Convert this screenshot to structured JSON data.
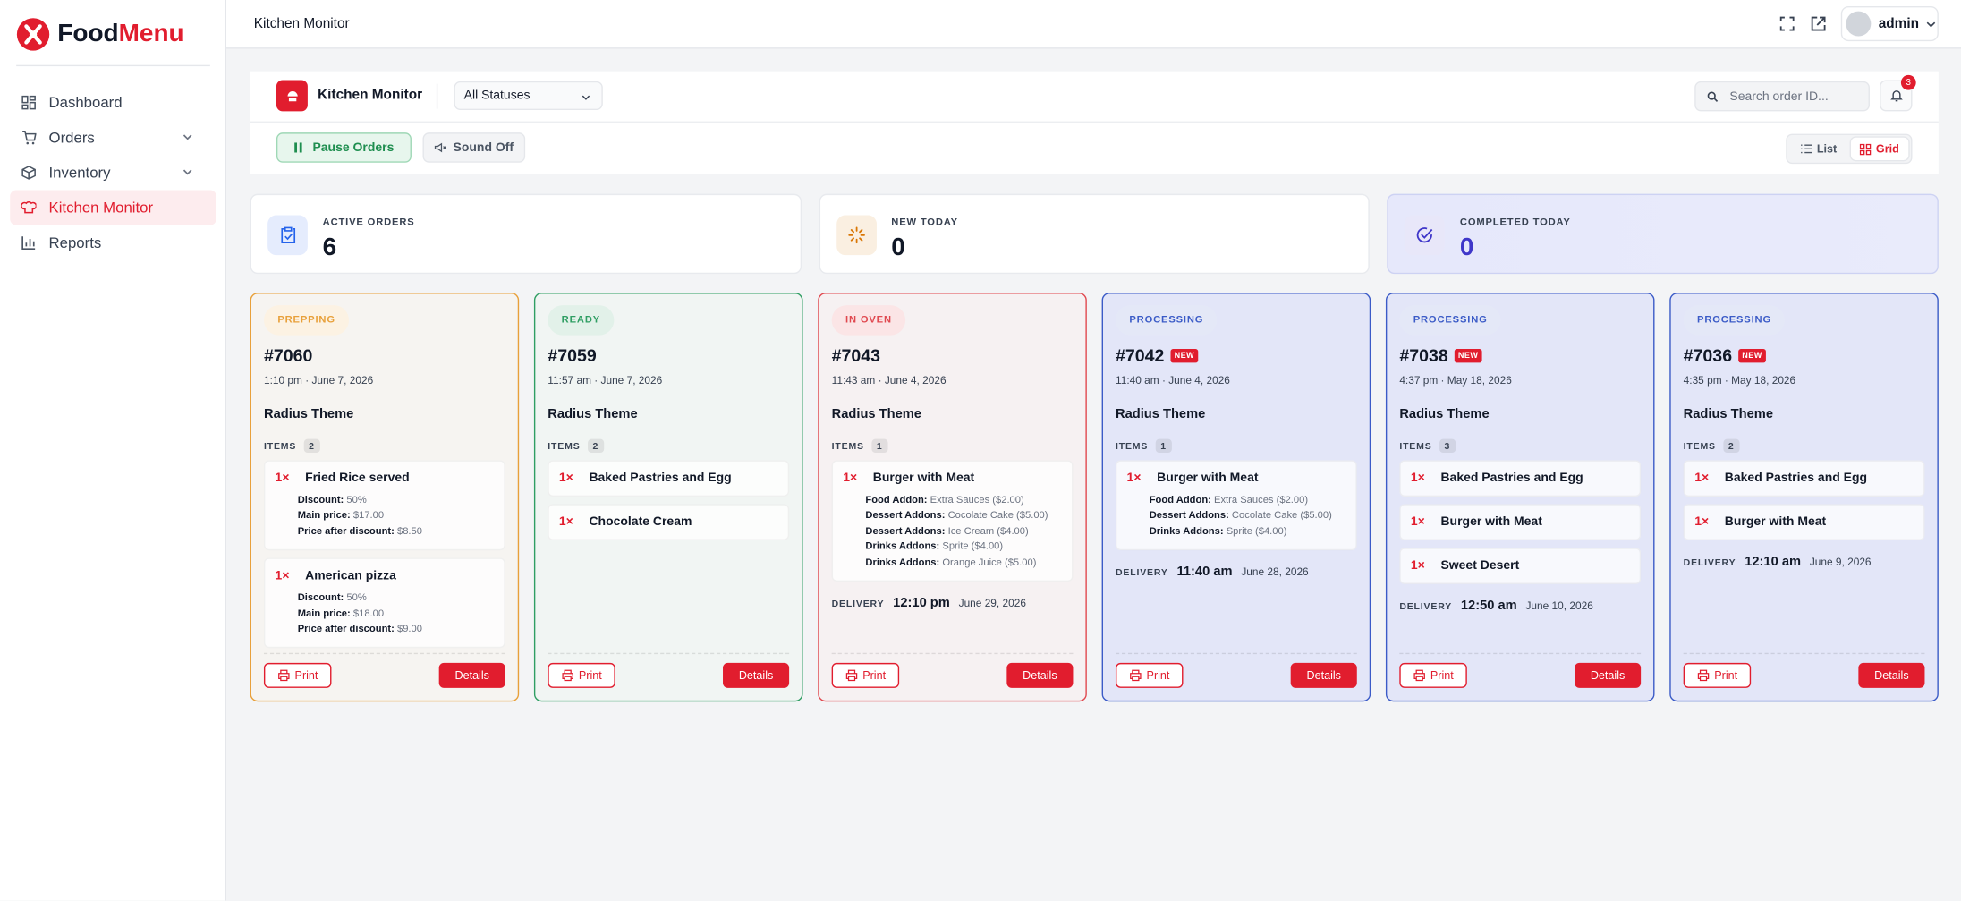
{
  "sidebar": {
    "brand_first": "Food",
    "brand_second": "Menu",
    "nav": [
      {
        "label": "Dashboard",
        "icon": "grid",
        "active": false,
        "expandable": false
      },
      {
        "label": "Orders",
        "icon": "cart",
        "active": false,
        "expandable": true
      },
      {
        "label": "Inventory",
        "icon": "box",
        "active": false,
        "expandable": true
      },
      {
        "label": "Kitchen Monitor",
        "icon": "chef",
        "active": true,
        "expandable": false
      },
      {
        "label": "Reports",
        "icon": "chart",
        "active": false,
        "expandable": false
      }
    ]
  },
  "header": {
    "title": "Kitchen Monitor",
    "user": "admin"
  },
  "toolbar": {
    "title": "Kitchen Monitor",
    "status_filter": "All Statuses",
    "search_placeholder": "Search order ID...",
    "notification_count": 3,
    "pause": "Pause Orders",
    "sound": "Sound Off",
    "views": [
      "List",
      "Grid"
    ]
  },
  "stats": [
    {
      "label": "ACTIVE ORDERS",
      "value": 6,
      "color": "#2563eb",
      "highlight": false
    },
    {
      "label": "NEW TODAY",
      "value": 0,
      "color": "#d97706",
      "highlight": false
    },
    {
      "label": "COMPLETED TODAY",
      "value": 0,
      "color": "#3f37c9",
      "highlight": true
    }
  ],
  "labels": {
    "items": "ITEMS",
    "delivery": "DELIVERY",
    "new": "NEW",
    "print": "Print",
    "details": "Details"
  },
  "orders": [
    {
      "status": "PREPPING",
      "color": "#e8a03a",
      "background": "#f6f4f1",
      "id": "#7060",
      "is_new": false,
      "time": "1:10 pm · June 7, 2026",
      "customer": "Radius Theme",
      "items_count": 2,
      "items": [
        {
          "qty": "1×",
          "name": "Fried Rice served",
          "details": [
            {
              "label": "Discount:",
              "value": "50%"
            },
            {
              "label": "Main price:",
              "value": "$17.00"
            },
            {
              "label": "Price after discount:",
              "value": "$8.50"
            }
          ]
        },
        {
          "qty": "1×",
          "name": "American pizza",
          "details": [
            {
              "label": "Discount:",
              "value": "50%"
            },
            {
              "label": "Main price:",
              "value": "$18.00"
            },
            {
              "label": "Price after discount:",
              "value": "$9.00"
            }
          ]
        }
      ]
    },
    {
      "status": "READY",
      "color": "#2f9e63",
      "background": "#f1f5f3",
      "id": "#7059",
      "is_new": false,
      "time": "11:57 am · June 7, 2026",
      "customer": "Radius Theme",
      "items_count": 2,
      "items": [
        {
          "qty": "1×",
          "name": "Baked Pastries and Egg",
          "details": []
        },
        {
          "qty": "1×",
          "name": "Chocolate Cream",
          "details": []
        }
      ]
    },
    {
      "status": "IN OVEN",
      "color": "#e0484f",
      "background": "#f6f1f2",
      "id": "#7043",
      "is_new": false,
      "time": "11:43 am · June 4, 2026",
      "customer": "Radius Theme",
      "items_count": 1,
      "items": [
        {
          "qty": "1×",
          "name": "Burger with Meat",
          "details": [
            {
              "label": "Food Addon:",
              "value": "Extra Sauces ($2.00)"
            },
            {
              "label": "Dessert Addons:",
              "value": "Cocolate Cake ($5.00)"
            },
            {
              "label": "Dessert Addons:",
              "value": "Ice Cream ($4.00)"
            },
            {
              "label": "Drinks Addons:",
              "value": "Sprite ($4.00)"
            },
            {
              "label": "Drinks Addons:",
              "value": "Orange Juice ($5.00)"
            }
          ]
        }
      ],
      "delivery_time": "12:10 pm",
      "delivery_date": "June 29, 2026"
    },
    {
      "status": "PROCESSING",
      "color": "#3b5bc7",
      "background": "#e3e6f8",
      "id": "#7042",
      "is_new": true,
      "time": "11:40 am · June 4, 2026",
      "customer": "Radius Theme",
      "items_count": 1,
      "items": [
        {
          "qty": "1×",
          "name": "Burger with Meat",
          "details": [
            {
              "label": "Food Addon:",
              "value": "Extra Sauces ($2.00)"
            },
            {
              "label": "Dessert Addons:",
              "value": "Cocolate Cake ($5.00)"
            },
            {
              "label": "Drinks Addons:",
              "value": "Sprite ($4.00)"
            }
          ]
        }
      ],
      "delivery_time": "11:40 am",
      "delivery_date": "June 28, 2026"
    },
    {
      "status": "PROCESSING",
      "color": "#3b5bc7",
      "background": "#e3e6f8",
      "id": "#7038",
      "is_new": true,
      "time": "4:37 pm · May 18, 2026",
      "customer": "Radius Theme",
      "items_count": 3,
      "items": [
        {
          "qty": "1×",
          "name": "Baked Pastries and Egg",
          "details": []
        },
        {
          "qty": "1×",
          "name": "Burger with Meat",
          "details": []
        },
        {
          "qty": "1×",
          "name": "Sweet Desert",
          "details": []
        }
      ],
      "delivery_time": "12:50 am",
      "delivery_date": "June 10, 2026"
    },
    {
      "status": "PROCESSING",
      "color": "#3b5bc7",
      "background": "#e3e6f8",
      "id": "#7036",
      "is_new": true,
      "time": "4:35 pm · May 18, 2026",
      "customer": "Radius Theme",
      "items_count": 2,
      "items": [
        {
          "qty": "1×",
          "name": "Baked Pastries and Egg",
          "details": []
        },
        {
          "qty": "1×",
          "name": "Burger with Meat",
          "details": []
        }
      ],
      "delivery_time": "12:10 am",
      "delivery_date": "June 9, 2026"
    }
  ]
}
